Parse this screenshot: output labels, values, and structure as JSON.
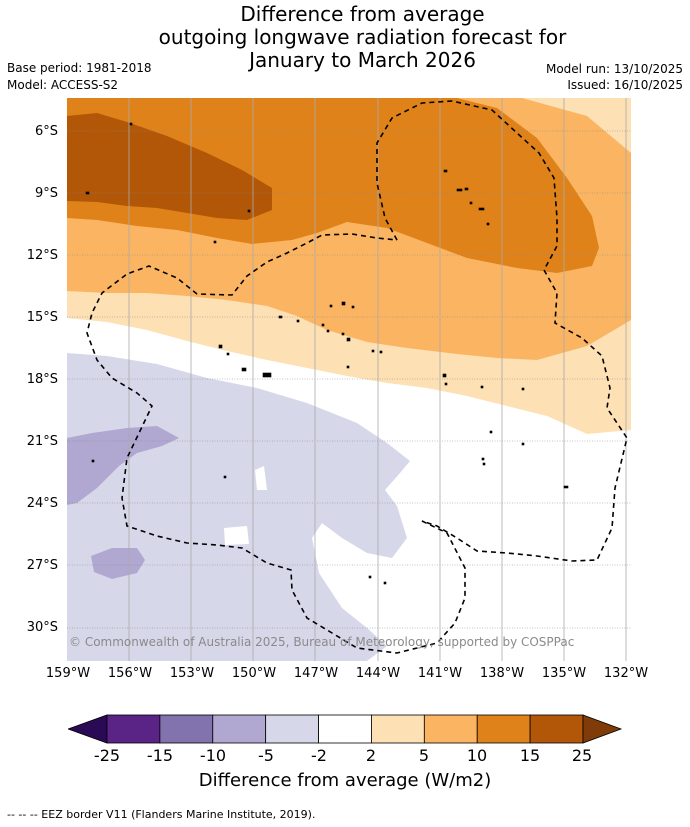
{
  "title": {
    "line1": "Difference from average",
    "line2": "outgoing longwave radiation forecast for",
    "line3": "January to March 2026"
  },
  "meta": {
    "base_period": "Base period: 1981-2018",
    "model": "Model: ACCESS-S2",
    "model_run": "Model run: 13/10/2025",
    "issued": "Issued: 16/10/2025"
  },
  "map": {
    "copyright": "© Commonwealth of Australia 2025, Bureau of Meteorology, supported by COSPPac",
    "lat_labels": [
      "6°S",
      "9°S",
      "12°S",
      "15°S",
      "18°S",
      "21°S",
      "24°S",
      "27°S",
      "30°S"
    ],
    "lon_labels": [
      "159°W",
      "156°W",
      "153°W",
      "150°W",
      "147°W",
      "144°W",
      "141°W",
      "138°W",
      "135°W",
      "132°W"
    ]
  },
  "colorbar": {
    "ticks": [
      "-25",
      "-15",
      "-10",
      "-5",
      "-2",
      "2",
      "5",
      "10",
      "15",
      "25"
    ],
    "colors": [
      "#5a2386",
      "#8272ad",
      "#b0a8d0",
      "#d7d7ea",
      "#ffffff",
      "#fde0b3",
      "#fbb562",
      "#e0821a",
      "#b25707"
    ],
    "under_color": "#2a0a55",
    "over_color": "#7f3b08",
    "label": "Difference from average (W/m2)"
  },
  "footer": {
    "legend": "--  --  -- EEZ border V11 (Flanders Marine Institute, 2019)."
  }
}
